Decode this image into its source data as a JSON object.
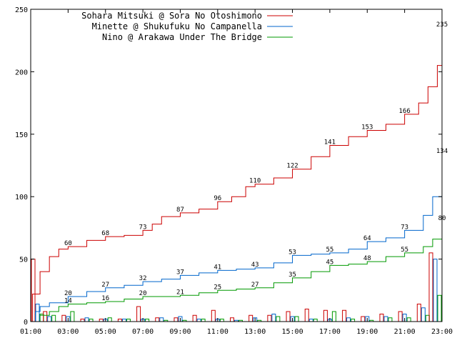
{
  "chart_data": {
    "type": "line",
    "title": "",
    "xlabel": "",
    "ylabel": "",
    "xlim": [
      "01:00",
      "23:00"
    ],
    "ylim": [
      0,
      250
    ],
    "grid": false,
    "legend_position": "top-right",
    "x_ticks": [
      "01:00",
      "03:00",
      "05:00",
      "07:00",
      "09:00",
      "11:00",
      "13:00",
      "15:00",
      "17:00",
      "19:00",
      "21:00",
      "23:00"
    ],
    "y_ticks": [
      0,
      50,
      100,
      150,
      200,
      250
    ],
    "series": [
      {
        "name": "Sohara Mitsuki @ Sora No Otoshimono",
        "color": "#cc0000",
        "points": [
          [
            "01:00",
            0
          ],
          [
            "01:06",
            22
          ],
          [
            "01:30",
            40
          ],
          [
            "02:00",
            52
          ],
          [
            "02:30",
            58
          ],
          [
            "03:00",
            60
          ],
          [
            "04:00",
            65
          ],
          [
            "05:00",
            68
          ],
          [
            "06:00",
            69
          ],
          [
            "07:00",
            73
          ],
          [
            "07:30",
            78
          ],
          [
            "08:00",
            84
          ],
          [
            "09:00",
            87
          ],
          [
            "10:00",
            90
          ],
          [
            "11:00",
            96
          ],
          [
            "11:45",
            100
          ],
          [
            "12:30",
            108
          ],
          [
            "13:00",
            110
          ],
          [
            "14:00",
            115
          ],
          [
            "15:00",
            122
          ],
          [
            "16:00",
            132
          ],
          [
            "17:00",
            141
          ],
          [
            "18:00",
            148
          ],
          [
            "19:00",
            153
          ],
          [
            "20:00",
            158
          ],
          [
            "21:00",
            166
          ],
          [
            "21:45",
            175
          ],
          [
            "22:15",
            188
          ],
          [
            "22:45",
            205
          ],
          [
            "23:00",
            235
          ]
        ],
        "labels": [
          {
            "x": "03:00",
            "value": 60
          },
          {
            "x": "05:00",
            "value": 68
          },
          {
            "x": "07:00",
            "value": 73
          },
          {
            "x": "09:00",
            "value": 87
          },
          {
            "x": "11:00",
            "value": 96
          },
          {
            "x": "13:00",
            "value": 110
          },
          {
            "x": "15:00",
            "value": 122
          },
          {
            "x": "17:00",
            "value": 141
          },
          {
            "x": "19:00",
            "value": 153
          },
          {
            "x": "21:00",
            "value": 166
          },
          {
            "x": "23:00",
            "value": 235
          }
        ]
      },
      {
        "name": "Minette @ Shukufuku No Campanella",
        "color": "#0066cc",
        "points": [
          [
            "01:00",
            0
          ],
          [
            "01:15",
            8
          ],
          [
            "01:30",
            12
          ],
          [
            "02:00",
            15
          ],
          [
            "03:00",
            20
          ],
          [
            "04:00",
            24
          ],
          [
            "05:00",
            27
          ],
          [
            "06:00",
            29
          ],
          [
            "07:00",
            32
          ],
          [
            "08:00",
            34
          ],
          [
            "09:00",
            37
          ],
          [
            "10:00",
            39
          ],
          [
            "11:00",
            41
          ],
          [
            "12:00",
            42
          ],
          [
            "13:00",
            43
          ],
          [
            "14:00",
            47
          ],
          [
            "15:00",
            53
          ],
          [
            "16:00",
            54
          ],
          [
            "17:00",
            55
          ],
          [
            "18:00",
            58
          ],
          [
            "19:00",
            64
          ],
          [
            "20:00",
            67
          ],
          [
            "21:00",
            73
          ],
          [
            "22:00",
            85
          ],
          [
            "22:30",
            100
          ],
          [
            "23:00",
            134
          ]
        ],
        "labels": [
          {
            "x": "03:00",
            "value": 20
          },
          {
            "x": "05:00",
            "value": 27
          },
          {
            "x": "07:00",
            "value": 32
          },
          {
            "x": "09:00",
            "value": 37
          },
          {
            "x": "11:00",
            "value": 41
          },
          {
            "x": "13:00",
            "value": 43
          },
          {
            "x": "15:00",
            "value": 53
          },
          {
            "x": "17:00",
            "value": 55
          },
          {
            "x": "19:00",
            "value": 64
          },
          {
            "x": "21:00",
            "value": 73
          },
          {
            "x": "23:00",
            "value": 134
          }
        ]
      },
      {
        "name": "Nino @ Arakawa Under The Bridge",
        "color": "#009900",
        "points": [
          [
            "01:00",
            0
          ],
          [
            "01:30",
            5
          ],
          [
            "02:00",
            8
          ],
          [
            "02:30",
            12
          ],
          [
            "03:00",
            14
          ],
          [
            "04:00",
            15
          ],
          [
            "05:00",
            16
          ],
          [
            "06:00",
            18
          ],
          [
            "07:00",
            20
          ],
          [
            "08:00",
            20
          ],
          [
            "09:00",
            21
          ],
          [
            "10:00",
            23
          ],
          [
            "11:00",
            25
          ],
          [
            "12:00",
            26
          ],
          [
            "13:00",
            27
          ],
          [
            "14:00",
            31
          ],
          [
            "15:00",
            35
          ],
          [
            "16:00",
            40
          ],
          [
            "17:00",
            45
          ],
          [
            "18:00",
            46
          ],
          [
            "19:00",
            48
          ],
          [
            "20:00",
            52
          ],
          [
            "21:00",
            55
          ],
          [
            "22:00",
            60
          ],
          [
            "22:30",
            66
          ],
          [
            "23:00",
            80
          ]
        ],
        "labels": [
          {
            "x": "03:00",
            "value": 14
          },
          {
            "x": "05:00",
            "value": 16
          },
          {
            "x": "07:00",
            "value": 20
          },
          {
            "x": "09:00",
            "value": 21
          },
          {
            "x": "11:00",
            "value": 25
          },
          {
            "x": "13:00",
            "value": 27
          },
          {
            "x": "15:00",
            "value": 35
          },
          {
            "x": "17:00",
            "value": 45
          },
          {
            "x": "19:00",
            "value": 48
          },
          {
            "x": "21:00",
            "value": 55
          },
          {
            "x": "23:00",
            "value": 80
          }
        ]
      }
    ],
    "hourly_bars": {
      "hours": [
        "01:00",
        "02:00",
        "03:00",
        "04:00",
        "05:00",
        "06:00",
        "07:00",
        "08:00",
        "09:00",
        "10:00",
        "11:00",
        "12:00",
        "13:00",
        "14:00",
        "15:00",
        "16:00",
        "17:00",
        "18:00",
        "19:00",
        "20:00",
        "21:00",
        "22:00",
        "23:00"
      ],
      "series_values": [
        [
          50,
          8,
          5,
          2,
          2,
          2,
          12,
          3,
          3,
          5,
          9,
          3,
          5,
          5,
          8,
          10,
          9,
          9,
          4,
          6,
          8,
          14,
          55
        ],
        [
          14,
          4,
          4,
          3,
          2,
          2,
          2,
          3,
          4,
          2,
          2,
          1,
          3,
          6,
          4,
          2,
          2,
          3,
          4,
          4,
          6,
          11,
          50
        ],
        [
          6,
          5,
          8,
          2,
          3,
          2,
          2,
          1,
          1,
          2,
          2,
          1,
          1,
          4,
          4,
          2,
          8,
          2,
          1,
          3,
          3,
          5,
          21
        ]
      ]
    }
  }
}
